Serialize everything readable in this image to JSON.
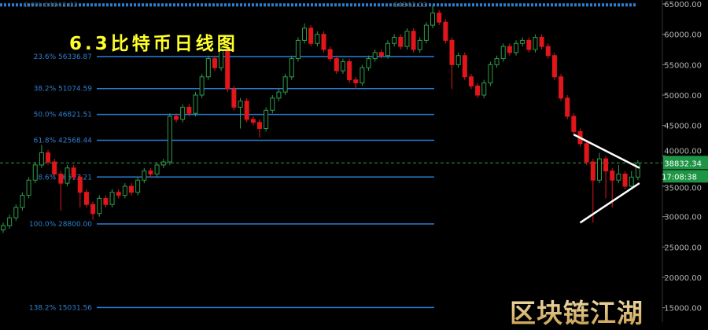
{
  "chart_data": {
    "type": "candlestick",
    "title": "6.3比特币日线图",
    "ylim": [
      15000,
      65000
    ],
    "y_ticks": [
      "65000.00",
      "60000.00",
      "55000.00",
      "50000.00",
      "45000.00",
      "40000.00",
      "35000.00",
      "30000.00",
      "25000.00",
      "20000.00",
      "15000.00"
    ],
    "y_tick_values": [
      65000,
      60000,
      55000,
      50000,
      45000,
      40000,
      35000,
      30000,
      25000,
      20000,
      15000
    ],
    "current_price": {
      "value": 38832.34,
      "label": "38832.34",
      "countdown": "17:08:38"
    },
    "fibonacci": [
      {
        "label": "0.0% 64843.03",
        "value": 64843.03
      },
      {
        "label": "23.6% 56336.87",
        "value": 56336.87
      },
      {
        "label": "38.2% 51074.59",
        "value": 51074.59
      },
      {
        "label": "50.0% 46821.51",
        "value": 46821.51
      },
      {
        "label": "61.8% 42568.44",
        "value": 42568.44
      },
      {
        "label": "78.6% 36513.21",
        "value": 36513.21
      },
      {
        "label": "100.0% 28800.00",
        "value": 28800
      },
      {
        "label": "138.2% 15031.56",
        "value": 15031.56
      }
    ],
    "triangle": {
      "upper": [
        {
          "candle": 89,
          "price": 43500
        },
        {
          "candle": 99,
          "price": 38000
        }
      ],
      "lower": [
        {
          "candle": 90,
          "price": 29000
        },
        {
          "candle": 99,
          "price": 35500
        }
      ]
    },
    "candles_ohlc": [
      [
        27800,
        29000,
        27300,
        28500
      ],
      [
        28500,
        30300,
        28000,
        29800
      ],
      [
        29800,
        32000,
        29300,
        31500
      ],
      [
        31500,
        34000,
        31000,
        33500
      ],
      [
        33500,
        36500,
        33000,
        36000
      ],
      [
        36000,
        39000,
        35500,
        38500
      ],
      [
        38500,
        41800,
        38000,
        40500
      ],
      [
        40500,
        41000,
        38500,
        39000
      ],
      [
        39000,
        39500,
        36500,
        37000
      ],
      [
        37000,
        37500,
        31000,
        35500
      ],
      [
        35500,
        38500,
        35000,
        38000
      ],
      [
        38000,
        38500,
        36000,
        36500
      ],
      [
        36500,
        37000,
        31500,
        34000
      ],
      [
        34000,
        34500,
        31500,
        32000
      ],
      [
        32000,
        32500,
        29500,
        30500
      ],
      [
        30500,
        33500,
        30000,
        33000
      ],
      [
        33000,
        33500,
        31500,
        32000
      ],
      [
        32000,
        34500,
        31500,
        34000
      ],
      [
        34000,
        34500,
        33000,
        33500
      ],
      [
        33500,
        35500,
        33000,
        35000
      ],
      [
        35000,
        35500,
        33500,
        34000
      ],
      [
        34000,
        36500,
        33500,
        36000
      ],
      [
        36000,
        38000,
        35500,
        37500
      ],
      [
        37500,
        38000,
        36500,
        37000
      ],
      [
        37000,
        39000,
        36500,
        38500
      ],
      [
        38500,
        39500,
        38000,
        39000
      ],
      [
        39000,
        47000,
        38500,
        46500
      ],
      [
        46500,
        47000,
        45500,
        46000
      ],
      [
        46000,
        48500,
        45500,
        48000
      ],
      [
        48000,
        48500,
        46500,
        47000
      ],
      [
        47000,
        50500,
        46500,
        50000
      ],
      [
        50000,
        53500,
        49500,
        53000
      ],
      [
        53000,
        56500,
        52500,
        56000
      ],
      [
        56000,
        56500,
        54000,
        54500
      ],
      [
        54500,
        58000,
        54000,
        57500
      ],
      [
        57500,
        58000,
        50500,
        51000
      ],
      [
        51000,
        51500,
        47500,
        48000
      ],
      [
        48000,
        49500,
        44500,
        49000
      ],
      [
        49000,
        49500,
        45500,
        46000
      ],
      [
        46000,
        46500,
        45000,
        45500
      ],
      [
        45500,
        46000,
        43000,
        44500
      ],
      [
        44500,
        48000,
        44000,
        47500
      ],
      [
        47500,
        50000,
        47000,
        49500
      ],
      [
        49500,
        51000,
        49000,
        50500
      ],
      [
        50500,
        53500,
        50000,
        53000
      ],
      [
        53000,
        56500,
        52500,
        56000
      ],
      [
        56000,
        59500,
        55500,
        59000
      ],
      [
        59000,
        61800,
        58500,
        61000
      ],
      [
        61000,
        61500,
        58000,
        58500
      ],
      [
        58500,
        60500,
        58000,
        60000
      ],
      [
        60000,
        60500,
        57000,
        57500
      ],
      [
        57500,
        58000,
        55500,
        56000
      ],
      [
        56000,
        56500,
        53500,
        54000
      ],
      [
        54000,
        56000,
        53500,
        55500
      ],
      [
        55500,
        56000,
        52000,
        52500
      ],
      [
        52500,
        53000,
        51000,
        52000
      ],
      [
        52000,
        55000,
        51500,
        54500
      ],
      [
        54500,
        56500,
        54000,
        56000
      ],
      [
        56000,
        57500,
        55500,
        57000
      ],
      [
        57000,
        57500,
        56000,
        56500
      ],
      [
        56500,
        59000,
        56000,
        58500
      ],
      [
        58500,
        60000,
        58000,
        59500
      ],
      [
        59500,
        60000,
        57500,
        58000
      ],
      [
        58000,
        61000,
        57500,
        60500
      ],
      [
        60500,
        61000,
        57000,
        57500
      ],
      [
        57500,
        59500,
        57000,
        59000
      ],
      [
        59000,
        62000,
        58500,
        61500
      ],
      [
        61500,
        64800,
        61000,
        63500
      ],
      [
        63500,
        64000,
        61500,
        62000
      ],
      [
        62000,
        62500,
        58500,
        59000
      ],
      [
        59000,
        59500,
        51000,
        55000
      ],
      [
        55000,
        57000,
        54500,
        56500
      ],
      [
        56500,
        57000,
        52500,
        53000
      ],
      [
        53000,
        53500,
        51000,
        51500
      ],
      [
        51500,
        52000,
        49500,
        50000
      ],
      [
        50000,
        52500,
        49500,
        52000
      ],
      [
        52000,
        55500,
        51500,
        55000
      ],
      [
        55000,
        56500,
        54500,
        56000
      ],
      [
        56000,
        58500,
        55500,
        58000
      ],
      [
        58000,
        58500,
        56500,
        57000
      ],
      [
        57000,
        59000,
        56500,
        58500
      ],
      [
        58500,
        59500,
        58000,
        59000
      ],
      [
        59000,
        59500,
        57000,
        57500
      ],
      [
        57500,
        60000,
        57000,
        59500
      ],
      [
        59500,
        60000,
        57500,
        58000
      ],
      [
        58000,
        58500,
        56000,
        56500
      ],
      [
        56500,
        57000,
        52500,
        53000
      ],
      [
        53000,
        53500,
        49000,
        49500
      ],
      [
        49500,
        50000,
        46000,
        46500
      ],
      [
        46500,
        47000,
        43500,
        44000
      ],
      [
        44000,
        44500,
        41500,
        42000
      ],
      [
        42000,
        42500,
        38500,
        39000
      ],
      [
        39000,
        39500,
        29000,
        36000
      ],
      [
        36000,
        40500,
        35500,
        39500
      ],
      [
        39500,
        40000,
        33000,
        37500
      ],
      [
        37500,
        38000,
        31500,
        36000
      ],
      [
        36000,
        38500,
        35500,
        37000
      ],
      [
        37000,
        37500,
        34500,
        35000
      ],
      [
        35000,
        37500,
        34500,
        36500
      ],
      [
        36500,
        39300,
        36000,
        38832
      ]
    ],
    "colors": {
      "up": "#2e9e4a",
      "down": "#e0161b",
      "fib": "#2a7fd4",
      "fib_text": "#2f7fd0",
      "price_box": "#1e9445",
      "axis_text": "#b4b4b4",
      "title": "#ffff2a",
      "triangle": "#ffffff"
    }
  },
  "watermark": "区块链江湖"
}
